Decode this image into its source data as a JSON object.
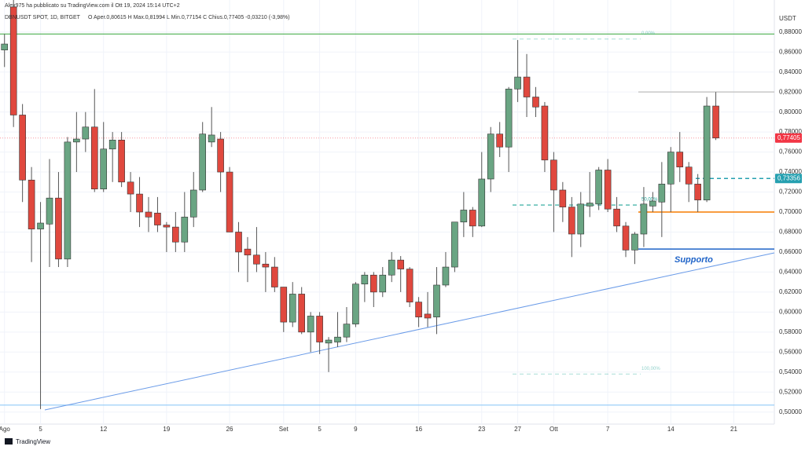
{
  "chart_data": {
    "type": "candlestick",
    "author_line": "Alex975 ha pubblicato su TradingView.com il Ott 19, 2024 15:14 UTC+2",
    "symbol": "DBNUSDT SPOT, 1D, BITGET",
    "ohlc_line": "O Aper.0,80615  H Max.0,81994  L Min.0,77154  C Chius.0,77405  -0,03210 (-3,98%)",
    "currency": "USDT",
    "brand": "TradingView",
    "categories": [
      "Ago",
      null,
      null,
      null,
      "5",
      null,
      null,
      null,
      null,
      null,
      null,
      "12",
      null,
      null,
      null,
      null,
      null,
      null,
      "19",
      null,
      null,
      null,
      null,
      null,
      null,
      "26",
      null,
      null,
      null,
      null,
      null,
      "Set",
      null,
      null,
      null,
      "5",
      null,
      null,
      null,
      "9",
      null,
      null,
      null,
      null,
      null,
      null,
      "16",
      null,
      null,
      null,
      null,
      null,
      null,
      "23",
      null,
      null,
      null,
      "27",
      null,
      null,
      null,
      "Ott",
      null,
      null,
      null,
      null,
      null,
      "7",
      null,
      null,
      null,
      null,
      null,
      null,
      "14",
      null,
      null,
      null,
      null,
      null,
      null,
      "21",
      null,
      null,
      null,
      null
    ],
    "open": [
      0.862,
      0.905,
      0.797,
      0.732,
      0.683,
      0.688,
      0.714,
      0.653,
      0.77,
      0.773,
      0.785,
      0.723,
      0.763,
      0.772,
      0.73,
      0.718,
      0.7,
      0.699,
      0.687,
      0.685,
      0.67,
      0.695,
      0.722,
      0.77,
      0.773,
      0.74,
      0.68,
      0.663,
      0.657,
      0.648,
      0.645,
      0.625,
      0.59,
      0.618,
      0.58,
      0.596,
      0.569,
      0.57,
      0.575,
      0.588,
      0.628,
      0.637,
      0.62,
      0.637,
      0.652,
      0.643,
      0.61,
      0.598,
      0.595,
      0.627,
      0.645,
      0.69,
      0.702,
      0.686,
      0.733,
      0.778,
      0.765,
      0.823,
      0.835,
      0.815,
      0.806,
      0.752,
      0.722,
      0.705,
      0.678,
      0.706,
      0.708,
      0.742,
      0.703,
      0.686,
      0.662,
      0.678,
      0.706,
      0.71,
      0.728,
      0.76,
      0.745,
      0.728,
      0.712,
      0.806,
      null,
      null,
      null,
      null,
      null,
      null
    ],
    "high": [
      0.878,
      0.912,
      0.808,
      0.745,
      0.71,
      0.753,
      0.74,
      0.775,
      0.8,
      0.8,
      0.823,
      0.79,
      0.78,
      0.78,
      0.74,
      0.735,
      0.715,
      0.715,
      0.69,
      0.7,
      0.72,
      0.74,
      0.79,
      0.805,
      0.78,
      0.745,
      0.69,
      0.675,
      0.685,
      0.66,
      0.655,
      0.625,
      0.63,
      0.625,
      0.6,
      0.6,
      0.575,
      0.6,
      0.605,
      0.63,
      0.64,
      0.64,
      0.645,
      0.66,
      0.656,
      0.645,
      0.615,
      0.62,
      0.645,
      0.66,
      0.69,
      0.72,
      0.705,
      0.76,
      0.785,
      0.79,
      0.825,
      0.872,
      0.858,
      0.825,
      0.81,
      0.76,
      0.73,
      0.715,
      0.72,
      0.74,
      0.745,
      0.753,
      0.715,
      0.69,
      0.68,
      0.725,
      0.72,
      0.75,
      0.765,
      0.78,
      0.75,
      0.738,
      0.815,
      0.82,
      null,
      null,
      null,
      null,
      null,
      null
    ],
    "low": [
      0.845,
      0.785,
      0.71,
      0.65,
      0.503,
      0.645,
      0.645,
      0.645,
      0.74,
      0.76,
      0.72,
      0.72,
      0.73,
      0.725,
      0.7,
      0.685,
      0.68,
      0.68,
      0.66,
      0.66,
      0.66,
      0.685,
      0.72,
      0.765,
      0.72,
      0.68,
      0.64,
      0.63,
      0.64,
      0.62,
      0.62,
      0.58,
      0.585,
      0.578,
      0.56,
      0.558,
      0.54,
      0.565,
      0.57,
      0.585,
      0.61,
      0.605,
      0.615,
      0.63,
      0.62,
      0.605,
      0.585,
      0.585,
      0.578,
      0.625,
      0.64,
      0.675,
      0.675,
      0.685,
      0.72,
      0.755,
      0.74,
      0.81,
      0.795,
      0.795,
      0.74,
      0.68,
      0.69,
      0.655,
      0.665,
      0.695,
      0.702,
      0.7,
      0.68,
      0.655,
      0.648,
      0.665,
      0.7,
      0.675,
      0.7,
      0.73,
      0.71,
      0.7,
      0.71,
      0.772,
      null,
      null,
      null,
      null,
      null,
      null
    ],
    "close": [
      0.868,
      0.797,
      0.732,
      0.683,
      0.689,
      0.714,
      0.653,
      0.77,
      0.773,
      0.785,
      0.723,
      0.763,
      0.772,
      0.73,
      0.718,
      0.7,
      0.695,
      0.687,
      0.685,
      0.67,
      0.695,
      0.722,
      0.778,
      0.777,
      0.74,
      0.68,
      0.66,
      0.657,
      0.648,
      0.645,
      0.625,
      0.59,
      0.618,
      0.58,
      0.596,
      0.57,
      0.572,
      0.575,
      0.588,
      0.628,
      0.637,
      0.62,
      0.637,
      0.652,
      0.643,
      0.61,
      0.595,
      0.594,
      0.627,
      0.645,
      0.69,
      0.702,
      0.686,
      0.733,
      0.778,
      0.765,
      0.823,
      0.835,
      0.815,
      0.805,
      0.752,
      0.722,
      0.705,
      0.678,
      0.708,
      0.709,
      0.742,
      0.703,
      0.686,
      0.662,
      0.678,
      0.708,
      0.711,
      0.728,
      0.76,
      0.745,
      0.728,
      0.712,
      0.806,
      0.774,
      null,
      null,
      null,
      null,
      null,
      null
    ],
    "up_color": "#6aa583",
    "down_color": "#e0483e",
    "ylim": [
      0.488,
      0.912
    ],
    "yticks": [
      {
        "value": 0.5,
        "label": "0,50000"
      },
      {
        "value": 0.52,
        "label": "0,52000"
      },
      {
        "value": 0.54,
        "label": "0,54000"
      },
      {
        "value": 0.56,
        "label": "0,56000"
      },
      {
        "value": 0.58,
        "label": "0,58000"
      },
      {
        "value": 0.6,
        "label": "0,60000"
      },
      {
        "value": 0.62,
        "label": "0,62000"
      },
      {
        "value": 0.64,
        "label": "0,64000"
      },
      {
        "value": 0.66,
        "label": "0,66000"
      },
      {
        "value": 0.68,
        "label": "0,68000"
      },
      {
        "value": 0.7,
        "label": "0,70000"
      },
      {
        "value": 0.72,
        "label": "0,72000"
      },
      {
        "value": 0.74,
        "label": "0,74000"
      },
      {
        "value": 0.76,
        "label": "0,76000"
      },
      {
        "value": 0.78,
        "label": "0,78000"
      },
      {
        "value": 0.8,
        "label": "0,80000"
      },
      {
        "value": 0.82,
        "label": "0,82000"
      },
      {
        "value": 0.84,
        "label": "0,84000"
      },
      {
        "value": 0.86,
        "label": "0,86000"
      },
      {
        "value": 0.88,
        "label": "0,88000"
      }
    ],
    "grid": true,
    "levels": [
      {
        "value": 0.878,
        "color": "#4caf50"
      },
      {
        "value": 0.507,
        "color": "#90caf9"
      },
      {
        "value": 0.82,
        "color": "#c8c8c8"
      },
      {
        "value": 0.7,
        "color": "#f57c00"
      },
      {
        "value": 0.663,
        "color": "#1e63c8"
      },
      {
        "value": 0.7336,
        "color": "#26a0b0"
      }
    ],
    "fib_levels": [
      {
        "value": 0.873,
        "label": "0,00%"
      },
      {
        "value": 0.707,
        "label": "50,00%"
      },
      {
        "value": 0.538,
        "label": "100,00%"
      }
    ],
    "support_label": "Supporto",
    "price_labels": [
      {
        "value": 0.77405,
        "label": "0,77405",
        "color": "#f23645"
      },
      {
        "value": 0.73356,
        "label": "0,73356",
        "color": "#26a0b0"
      }
    ]
  }
}
